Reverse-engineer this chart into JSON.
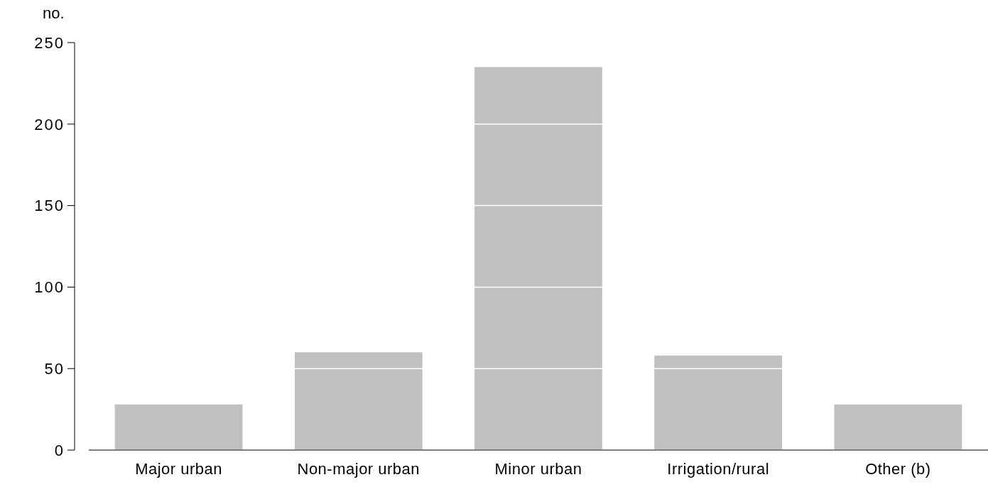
{
  "chart_data": {
    "type": "bar",
    "ylabel": "no.",
    "categories": [
      "Major urban",
      "Non-major urban",
      "Minor urban",
      "Irrigation/rural",
      "Other (b)"
    ],
    "values": [
      28,
      60,
      235,
      58,
      28
    ],
    "color": "#c0c0c0",
    "ylim": [
      0,
      250
    ],
    "yticks": [
      0,
      50,
      100,
      150,
      200,
      250
    ],
    "grid": "y"
  }
}
